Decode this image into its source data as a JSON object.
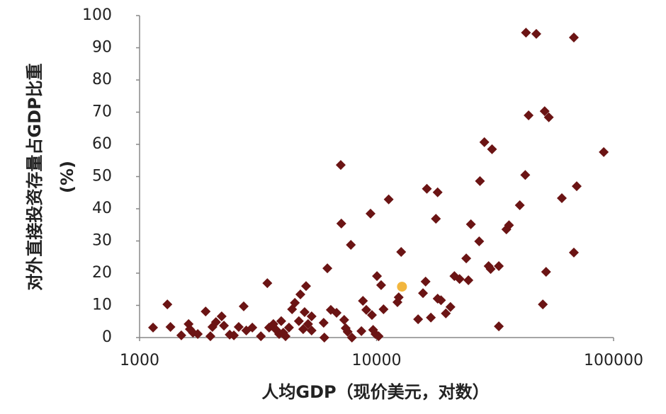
{
  "chart_data": {
    "type": "scatter",
    "xlabel": "人均GDP（现价美元，对数）",
    "ylabel": [
      "对外直接投资存量占GDP比重",
      "(%)"
    ],
    "xscale": "log",
    "xlim": [
      1000,
      100000
    ],
    "xticks": [
      1000,
      10000,
      100000
    ],
    "ylim": [
      0,
      100
    ],
    "yticks": [
      0,
      10,
      20,
      30,
      40,
      50,
      60,
      70,
      80,
      90,
      100
    ],
    "series": [
      {
        "color": "#6b1414",
        "x": [
          1140,
          1310,
          1350,
          1500,
          1610,
          1630,
          1680,
          1760,
          1900,
          1990,
          2030,
          2100,
          2220,
          2270,
          2400,
          2500,
          2620,
          2750,
          2820,
          2990,
          3250,
          3460,
          3520,
          3670,
          3770,
          3880,
          3960,
          4040,
          4130,
          4270,
          4400,
          4520,
          4700,
          4770,
          4900,
          4970,
          5040,
          5140,
          5320,
          5320,
          5980,
          6020,
          6200,
          6410,
          6780,
          7060,
          7100,
          7300,
          7410,
          7550,
          7790,
          7870,
          8630,
          8760,
          9050,
          9430,
          9560,
          9670,
          9890,
          10040,
          10200,
          10450,
          10700,
          11250,
          12250,
          12400,
          12700,
          14970,
          15700,
          16100,
          16300,
          16950,
          17800,
          18100,
          18100,
          18700,
          19600,
          20500,
          21300,
          22400,
          23900,
          24400,
          25000,
          27100,
          27300,
          28500,
          29700,
          30300,
          30700,
          32800,
          32800,
          35300,
          36200,
          40200,
          42400,
          42700,
          43800,
          47200,
          50300,
          51200,
          51900,
          53300,
          60500,
          68000,
          68000,
          69900,
          90900
        ],
        "values": [
          3.1,
          10.3,
          3.3,
          0.7,
          4.2,
          2.6,
          1.5,
          1.1,
          8.1,
          0.4,
          3.3,
          4.8,
          6.6,
          3.7,
          0.9,
          0.7,
          3.3,
          9.7,
          2.2,
          3.1,
          0.4,
          16.9,
          3.1,
          4.2,
          2.4,
          1.1,
          5.1,
          1.5,
          0.4,
          3.1,
          8.8,
          10.8,
          5.1,
          13.4,
          2.6,
          7.9,
          16.0,
          4.2,
          6.6,
          2.2,
          4.6,
          0,
          21.5,
          8.6,
          7.7,
          53.6,
          35.4,
          5.5,
          2.9,
          1.8,
          28.8,
          0,
          2.0,
          11.4,
          8.6,
          38.5,
          7.0,
          2.4,
          1.1,
          19.1,
          0.4,
          16.3,
          8.8,
          42.9,
          11.0,
          12.5,
          26.6,
          5.7,
          13.8,
          17.4,
          46.2,
          6.2,
          36.9,
          45.1,
          12.1,
          11.6,
          7.5,
          9.5,
          19.1,
          18.2,
          24.6,
          17.8,
          35.2,
          29.9,
          48.6,
          60.7,
          22.2,
          21.3,
          58.5,
          22.2,
          3.5,
          33.6,
          34.9,
          41.1,
          50.5,
          94.7,
          69.0,
          94.3,
          10.3,
          70.3,
          20.4,
          68.4,
          43.3,
          93.2,
          26.4,
          47.0,
          57.6
        ]
      },
      {
        "color": "#f2b63e",
        "x": [
          12800
        ],
        "values": [
          15.8
        ]
      }
    ]
  }
}
